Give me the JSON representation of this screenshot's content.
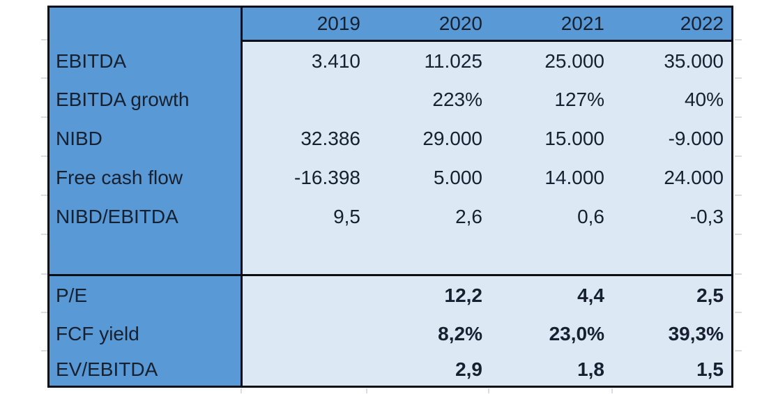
{
  "colors": {
    "header_blue": "#5899d6",
    "cell_blue": "#dce8f4",
    "border_black": "#0b0e14",
    "text": "#16202f"
  },
  "table": {
    "corner_label": "",
    "years": [
      "2019",
      "2020",
      "2021",
      "2022"
    ],
    "metrics": [
      {
        "label": "EBITDA",
        "values": [
          "3.410",
          "11.025",
          "25.000",
          "35.000"
        ]
      },
      {
        "label": "EBITDA growth",
        "values": [
          "",
          "223%",
          "127%",
          "40%"
        ]
      },
      {
        "label": "NIBD",
        "values": [
          "32.386",
          "29.000",
          "15.000",
          "-9.000"
        ]
      },
      {
        "label": "Free cash flow",
        "values": [
          "-16.398",
          "5.000",
          "14.000",
          "24.000"
        ]
      },
      {
        "label": "NIBD/EBITDA",
        "values": [
          "9,5",
          "2,6",
          "0,6",
          "-0,3"
        ]
      },
      {
        "label": "",
        "values": [
          "",
          "",
          "",
          ""
        ]
      }
    ],
    "valuation_metrics": [
      {
        "label": "P/E",
        "values": [
          "",
          "12,2",
          "4,4",
          "2,5"
        ]
      },
      {
        "label": "FCF yield",
        "values": [
          "",
          "8,2%",
          "23,0%",
          "39,3%"
        ]
      },
      {
        "label": "EV/EBITDA",
        "values": [
          "",
          "2,9",
          "1,8",
          "1,5"
        ]
      }
    ]
  }
}
